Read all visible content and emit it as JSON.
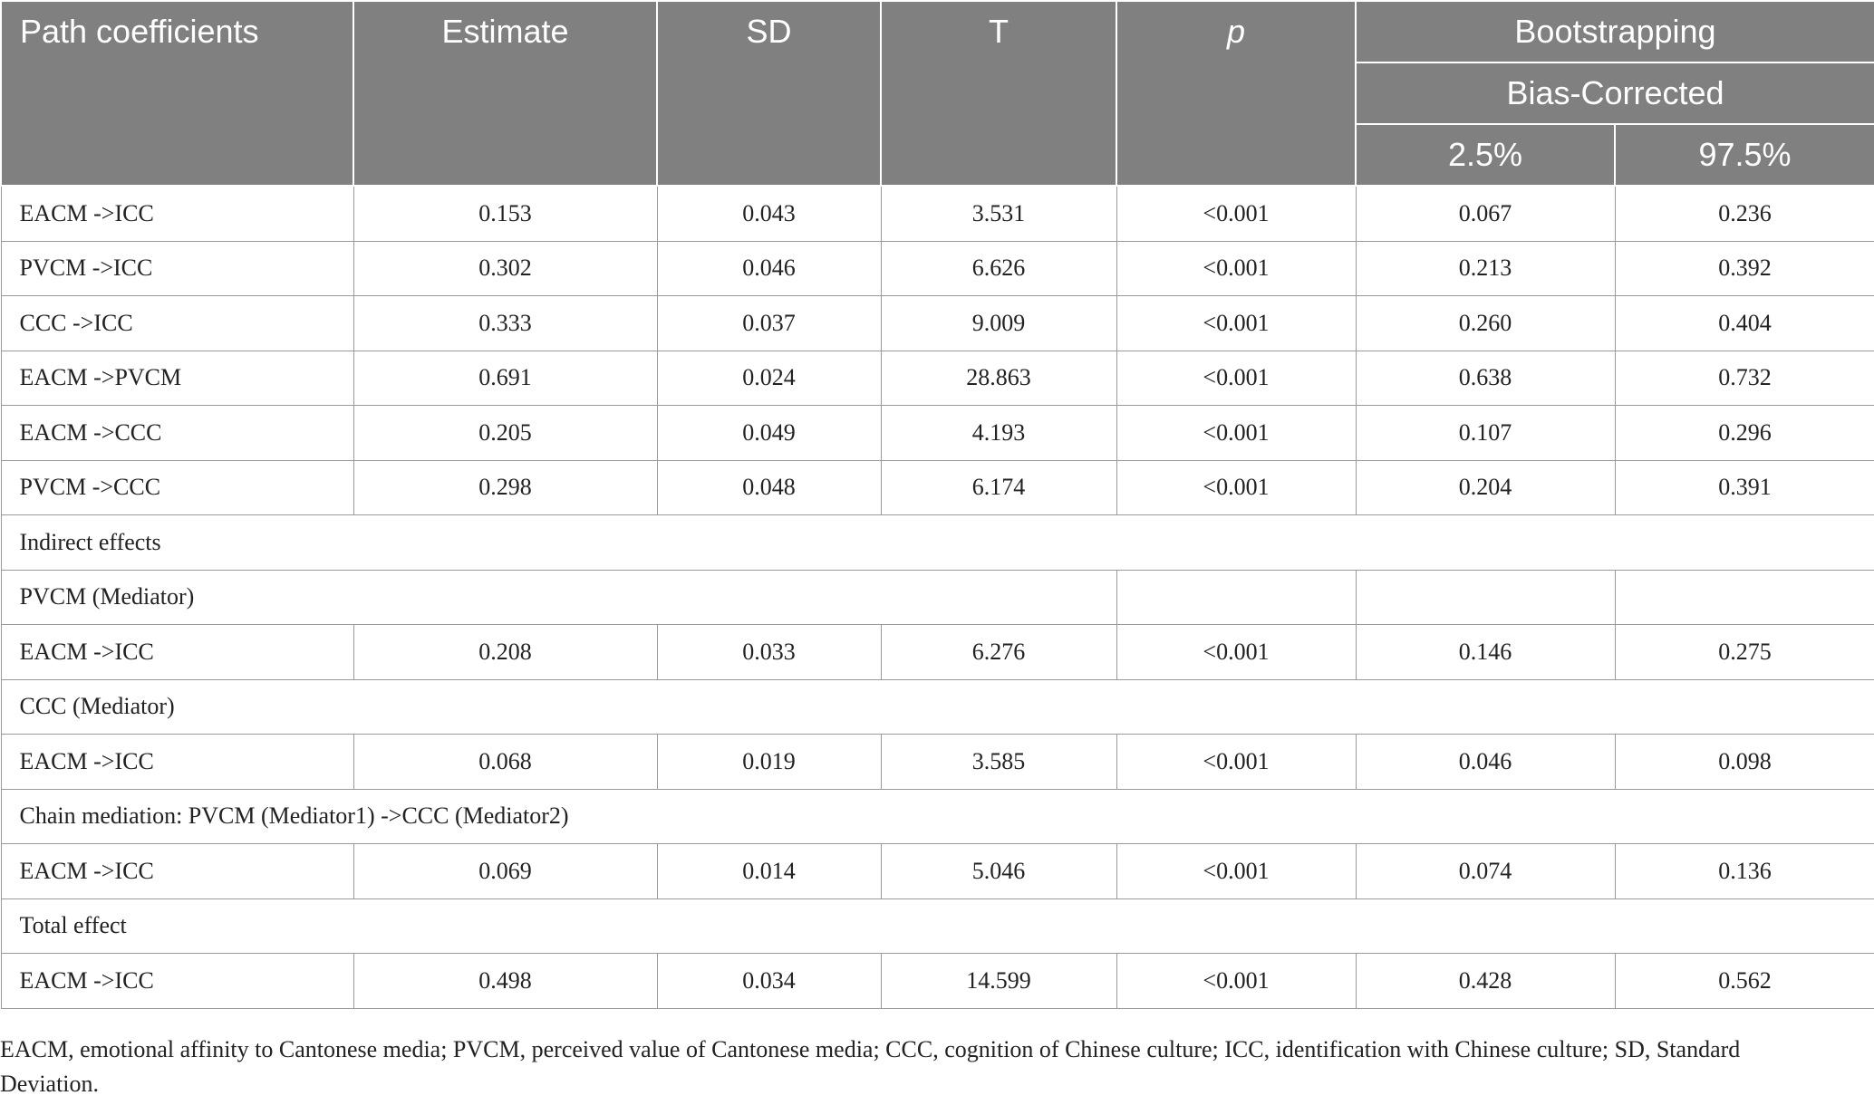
{
  "header": {
    "path": "Path coefficients",
    "estimate": "Estimate",
    "sd": "SD",
    "t": "T",
    "p": "p",
    "bootstrapping": "Bootstrapping",
    "bias_corrected": "Bias-Corrected",
    "lower": "2.5%",
    "upper": "97.5%"
  },
  "path_rows": [
    {
      "path": "EACM ->ICC",
      "estimate": "0.153",
      "sd": "0.043",
      "t": "3.531",
      "p": "<0.001",
      "lower": "0.067",
      "upper": "0.236"
    },
    {
      "path": "PVCM ->ICC",
      "estimate": "0.302",
      "sd": "0.046",
      "t": "6.626",
      "p": "<0.001",
      "lower": "0.213",
      "upper": "0.392"
    },
    {
      "path": "CCC ->ICC",
      "estimate": "0.333",
      "sd": "0.037",
      "t": "9.009",
      "p": "<0.001",
      "lower": "0.260",
      "upper": "0.404"
    },
    {
      "path": "EACM ->PVCM",
      "estimate": "0.691",
      "sd": "0.024",
      "t": "28.863",
      "p": "<0.001",
      "lower": "0.638",
      "upper": "0.732"
    },
    {
      "path": "EACM ->CCC",
      "estimate": "0.205",
      "sd": "0.049",
      "t": "4.193",
      "p": "<0.001",
      "lower": "0.107",
      "upper": "0.296"
    },
    {
      "path": "PVCM ->CCC",
      "estimate": "0.298",
      "sd": "0.048",
      "t": "6.174",
      "p": "<0.001",
      "lower": "0.204",
      "upper": "0.391"
    }
  ],
  "indirect_label": "Indirect effects",
  "pvcm_mediator_label": "PVCM (Mediator)",
  "pvcm_row": {
    "path": "EACM ->ICC",
    "estimate": "0.208",
    "sd": "0.033",
    "t": "6.276",
    "p": "<0.001",
    "lower": "0.146",
    "upper": "0.275"
  },
  "ccc_mediator_label": "CCC (Mediator)",
  "ccc_row": {
    "path": "EACM ->ICC",
    "estimate": "0.068",
    "sd": "0.019",
    "t": "3.585",
    "p": "<0.001",
    "lower": "0.046",
    "upper": "0.098"
  },
  "chain_label": "Chain mediation: PVCM (Mediator1) ->CCC (Mediator2)",
  "chain_row": {
    "path": "EACM ->ICC",
    "estimate": "0.069",
    "sd": "0.014",
    "t": "5.046",
    "p": "<0.001",
    "lower": "0.074",
    "upper": "0.136"
  },
  "total_label": "Total effect",
  "total_row": {
    "path": "EACM ->ICC",
    "estimate": "0.498",
    "sd": "0.034",
    "t": "14.599",
    "p": "<0.001",
    "lower": "0.428",
    "upper": "0.562"
  },
  "footnote": "EACM, emotional affinity to Cantonese media; PVCM, perceived value of Cantonese media; CCC, cognition of Chinese culture; ICC, identification with Chinese culture; SD, Standard Deviation."
}
